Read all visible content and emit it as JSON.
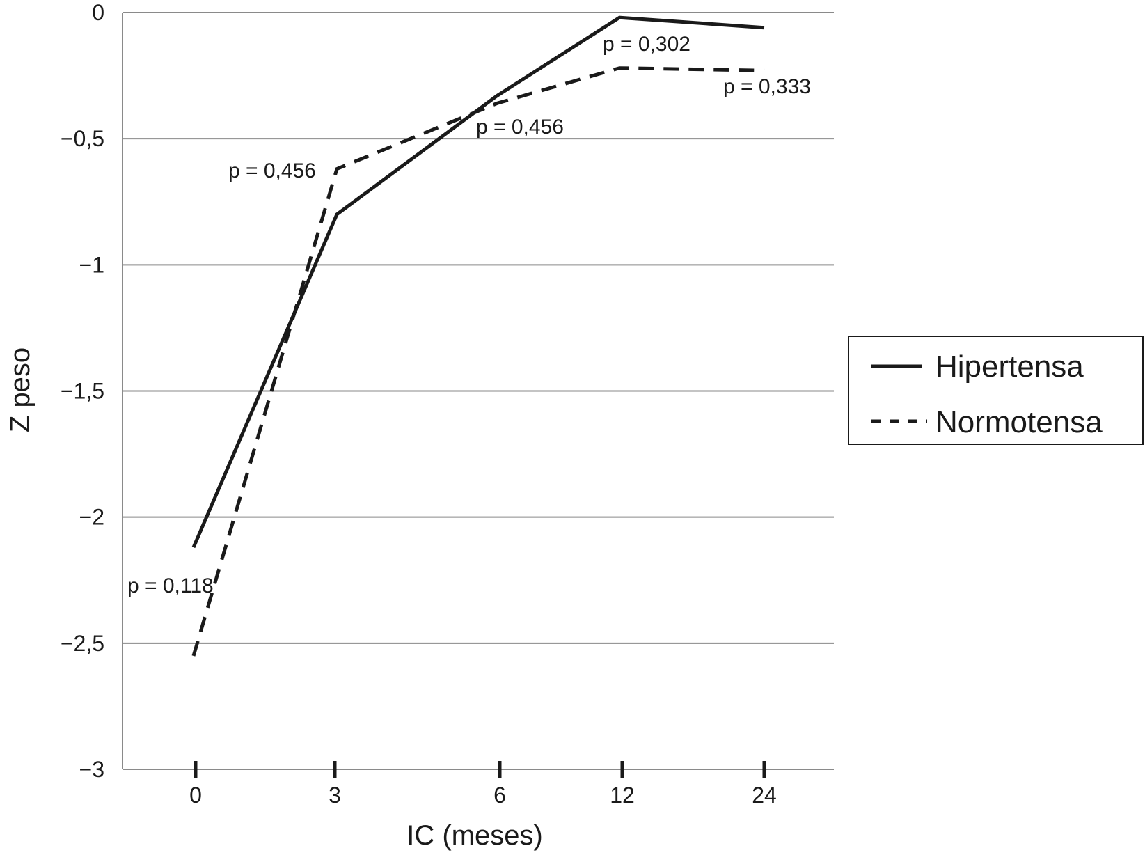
{
  "chart_data": {
    "type": "line",
    "xlabel": "IC (meses)",
    "ylabel": "Z peso",
    "categories": [
      "0",
      "3",
      "6",
      "12",
      "24"
    ],
    "ylim": [
      -3,
      0
    ],
    "yticks": [
      0,
      -0.5,
      -1,
      -1.5,
      -2,
      -2.5,
      -3
    ],
    "ytick_labels": [
      "0",
      "−0,5",
      "−1",
      "−1,5",
      "−2",
      "−2,5",
      "−3"
    ],
    "grid": "horizontal",
    "legend_position": "right",
    "series": [
      {
        "name": "Hipertensa",
        "style": "solid",
        "color": "#1a1a1a",
        "values": [
          -2.12,
          -0.8,
          -0.33,
          -0.02,
          -0.06
        ]
      },
      {
        "name": "Normotensa",
        "style": "dashed",
        "color": "#1a1a1a",
        "values": [
          -2.55,
          -0.62,
          -0.36,
          -0.22,
          -0.23
        ]
      }
    ],
    "annotations": [
      {
        "text": "p = 0,118",
        "x": "0"
      },
      {
        "text": "p = 0,456",
        "x": "3"
      },
      {
        "text": "p = 0,456",
        "x": "6"
      },
      {
        "text": "p = 0,302",
        "x": "12"
      },
      {
        "text": "p = 0,333",
        "x": "24"
      }
    ]
  }
}
